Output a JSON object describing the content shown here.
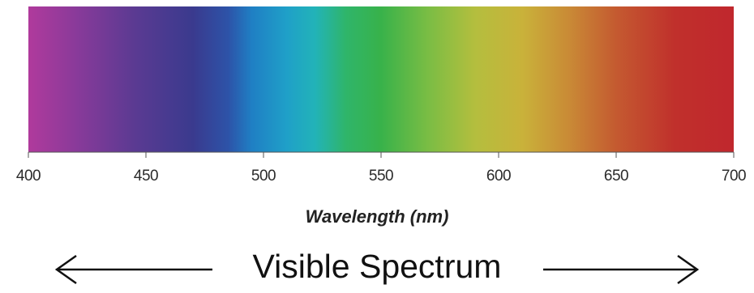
{
  "spectrum": {
    "gradient_stops": [
      {
        "wavelength": 400,
        "color": "#b03a9c"
      },
      {
        "wavelength": 420,
        "color": "#8a3a9a"
      },
      {
        "wavelength": 445,
        "color": "#5b3a92"
      },
      {
        "wavelength": 470,
        "color": "#3a3a8e"
      },
      {
        "wavelength": 485,
        "color": "#2d53a8"
      },
      {
        "wavelength": 495,
        "color": "#1f7fc4"
      },
      {
        "wavelength": 510,
        "color": "#1fa0c8"
      },
      {
        "wavelength": 522,
        "color": "#22b3b8"
      },
      {
        "wavelength": 535,
        "color": "#2fb56a"
      },
      {
        "wavelength": 550,
        "color": "#38b24a"
      },
      {
        "wavelength": 570,
        "color": "#7abd44"
      },
      {
        "wavelength": 590,
        "color": "#b4be3e"
      },
      {
        "wavelength": 610,
        "color": "#c9b23a"
      },
      {
        "wavelength": 630,
        "color": "#c98a36"
      },
      {
        "wavelength": 650,
        "color": "#c45a30"
      },
      {
        "wavelength": 675,
        "color": "#c0302c"
      },
      {
        "wavelength": 700,
        "color": "#c0272d"
      }
    ]
  },
  "axis": {
    "min": 400,
    "max": 700,
    "ticks": [
      "400",
      "450",
      "500",
      "550",
      "600",
      "650",
      "700"
    ],
    "title": "Wavelength (nm)"
  },
  "caption": {
    "text": "Visible Spectrum"
  }
}
